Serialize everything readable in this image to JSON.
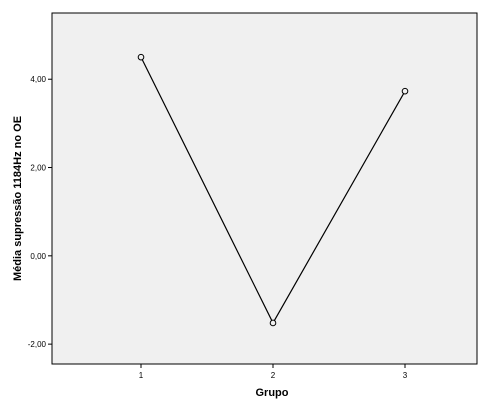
{
  "chart_data": {
    "type": "line",
    "title": "",
    "xlabel": "Grupo",
    "ylabel": "Média supressão 1184Hz no OE",
    "categories": [
      "1",
      "2",
      "3"
    ],
    "series": [
      {
        "values": [
          4.5,
          -1.52,
          3.73
        ]
      }
    ],
    "ylim": [
      -2.45,
      5.5
    ],
    "yticks": [
      -2,
      0,
      2,
      4
    ],
    "ytick_labels": [
      "-2,00",
      "0,00",
      "2,00",
      "4,00"
    ],
    "markers": "open-circle",
    "grid": false,
    "legend": "none",
    "colors": {
      "plot_background": "#f0f0f0",
      "line": "#000000",
      "frame": "#000000"
    }
  }
}
